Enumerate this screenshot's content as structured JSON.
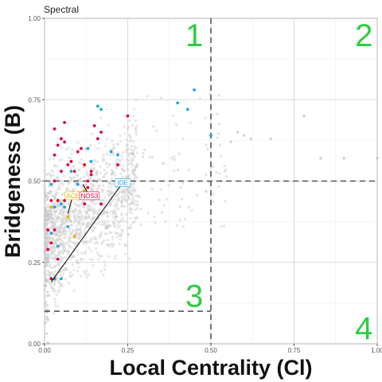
{
  "chart_data": {
    "type": "scatter",
    "subtitle": "Spectral",
    "xlabel": "Local Centrality (Cl)",
    "ylabel": "Bridgeness (B)",
    "xlim": [
      0,
      1
    ],
    "ylim": [
      0,
      1
    ],
    "x_ticks": [
      "0.00",
      "0.25",
      "0.50",
      "0.75",
      "1.00"
    ],
    "y_ticks": [
      "0.00",
      "0.25",
      "0.50",
      "0.75",
      "1.00"
    ],
    "grid": true,
    "colors": {
      "background_points": "#cccccc",
      "red": "#e0003c",
      "blue": "#1ba8e0",
      "yellow": "#e6b800",
      "threshold_line": "#555555",
      "quadrant_label": "#2ecc40"
    },
    "thresholds": {
      "vertical_x": 0.5,
      "horizontal_y_upper": 0.5,
      "horizontal_y_lower": 0.1
    },
    "quadrant_labels": [
      {
        "text": "1",
        "x": 0.45,
        "y": 0.94
      },
      {
        "text": "2",
        "x": 0.96,
        "y": 0.94
      },
      {
        "text": "3",
        "x": 0.45,
        "y": 0.14
      },
      {
        "text": "4",
        "x": 0.96,
        "y": 0.04
      }
    ],
    "annotations": [
      {
        "text": "ACE",
        "color": "#e6b800",
        "x": 0.085,
        "y": 0.455,
        "anchor": [
          0.07,
          0.4
        ]
      },
      {
        "text": "NOS3",
        "color": "#e0003c",
        "x": 0.135,
        "y": 0.455,
        "anchor": [
          0.115,
          0.49
        ]
      },
      {
        "text": "IDE",
        "color": "#1ba8e0",
        "x": 0.235,
        "y": 0.495,
        "anchor": [
          0.02,
          0.19
        ]
      }
    ],
    "series": [
      {
        "name": "red",
        "points": [
          [
            0.03,
            0.58
          ],
          [
            0.04,
            0.61
          ],
          [
            0.05,
            0.63
          ],
          [
            0.06,
            0.62
          ],
          [
            0.07,
            0.55
          ],
          [
            0.08,
            0.56
          ],
          [
            0.09,
            0.53
          ],
          [
            0.1,
            0.59
          ],
          [
            0.11,
            0.6
          ],
          [
            0.12,
            0.55
          ],
          [
            0.13,
            0.5
          ],
          [
            0.14,
            0.52
          ],
          [
            0.15,
            0.67
          ],
          [
            0.16,
            0.63
          ],
          [
            0.17,
            0.65
          ],
          [
            0.06,
            0.68
          ],
          [
            0.03,
            0.66
          ],
          [
            0.05,
            0.53
          ],
          [
            0.03,
            0.5
          ],
          [
            0.04,
            0.44
          ],
          [
            0.02,
            0.44
          ],
          [
            0.03,
            0.35
          ],
          [
            0.02,
            0.31
          ],
          [
            0.04,
            0.26
          ],
          [
            0.02,
            0.2
          ],
          [
            0.03,
            0.2
          ],
          [
            0.09,
            0.45
          ],
          [
            0.12,
            0.43
          ],
          [
            0.13,
            0.48
          ],
          [
            0.17,
            0.43
          ],
          [
            0.25,
            0.7
          ],
          [
            0.22,
            0.55
          ],
          [
            0.01,
            0.35
          ],
          [
            0.01,
            0.29
          ],
          [
            0.06,
            0.44
          ],
          [
            0.1,
            0.49
          ],
          [
            0.14,
            0.53
          ]
        ]
      },
      {
        "name": "blue",
        "points": [
          [
            0.45,
            0.78
          ],
          [
            0.5,
            0.64
          ],
          [
            0.03,
            0.42
          ],
          [
            0.05,
            0.43
          ],
          [
            0.02,
            0.34
          ],
          [
            0.04,
            0.3
          ],
          [
            0.09,
            0.33
          ],
          [
            0.07,
            0.36
          ],
          [
            0.14,
            0.56
          ],
          [
            0.2,
            0.59
          ],
          [
            0.22,
            0.58
          ],
          [
            0.16,
            0.73
          ],
          [
            0.17,
            0.72
          ],
          [
            0.08,
            0.53
          ],
          [
            0.1,
            0.49
          ],
          [
            0.06,
            0.42
          ],
          [
            0.03,
            0.2
          ],
          [
            0.05,
            0.2
          ],
          [
            0.12,
            0.47
          ],
          [
            0.24,
            0.5
          ],
          [
            0.4,
            0.74
          ],
          [
            0.43,
            0.72
          ],
          [
            0.13,
            0.6
          ],
          [
            0.02,
            0.49
          ]
        ]
      },
      {
        "name": "yellow",
        "points": [
          [
            0.09,
            0.33
          ],
          [
            0.07,
            0.39
          ],
          [
            0.02,
            0.42
          ],
          [
            0.12,
            0.47
          ]
        ]
      }
    ]
  }
}
